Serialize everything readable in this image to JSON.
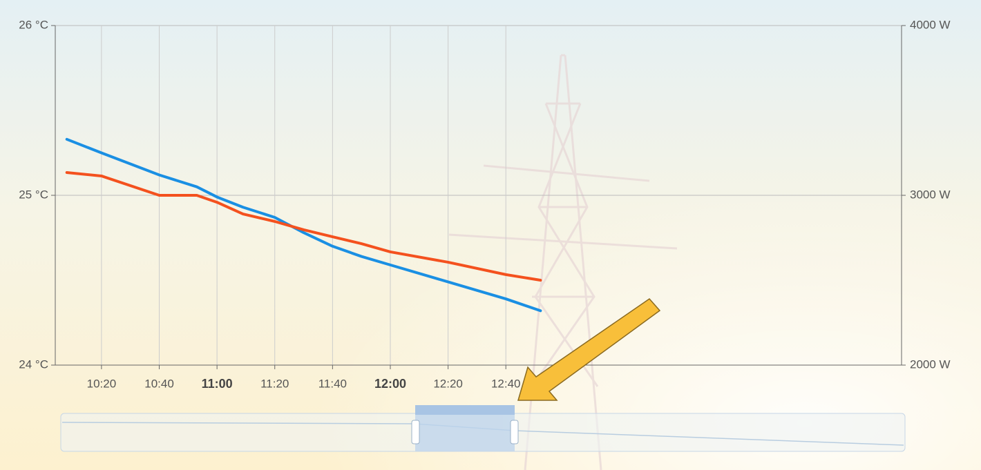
{
  "chart_data": {
    "type": "line",
    "x": [
      608,
      620,
      640,
      653,
      660,
      669,
      680,
      690,
      700,
      710,
      720,
      740,
      760,
      772
    ],
    "xlim": [
      604,
      897
    ],
    "xticks": [
      {
        "value": 620,
        "label": "10:20"
      },
      {
        "value": 640,
        "label": "10:40"
      },
      {
        "value": 660,
        "label": "11:00"
      },
      {
        "value": 680,
        "label": "11:20"
      },
      {
        "value": 700,
        "label": "11:40"
      },
      {
        "value": 720,
        "label": "12:00"
      },
      {
        "value": 740,
        "label": "12:20"
      },
      {
        "value": 760,
        "label": "12:40"
      }
    ],
    "ylim": [
      24,
      26
    ],
    "yticks": [
      {
        "value": 24,
        "label": "24 °C"
      },
      {
        "value": 25,
        "label": "25 °C"
      },
      {
        "value": 26,
        "label": "26 °C"
      }
    ],
    "y2lim": [
      2000,
      4000
    ],
    "y2ticks": [
      {
        "value": 2000,
        "label": "2000 W"
      },
      {
        "value": 3000,
        "label": "3000 W"
      },
      {
        "value": 4000,
        "label": "4000 W"
      }
    ],
    "grid": true,
    "series": [
      {
        "color": "#1a8fe3",
        "values": [
          25.33,
          25.25,
          25.12,
          25.05,
          24.99,
          24.93,
          24.87,
          24.78,
          24.7,
          24.64,
          24.59,
          24.49,
          24.39,
          24.32
        ]
      },
      {
        "color": "#f4511e",
        "axis": "y2",
        "values": [
          3134,
          3114,
          3000,
          3000,
          2959,
          2890,
          2846,
          2797,
          2756,
          2715,
          2667,
          2606,
          2533,
          2500
        ]
      }
    ]
  }
}
